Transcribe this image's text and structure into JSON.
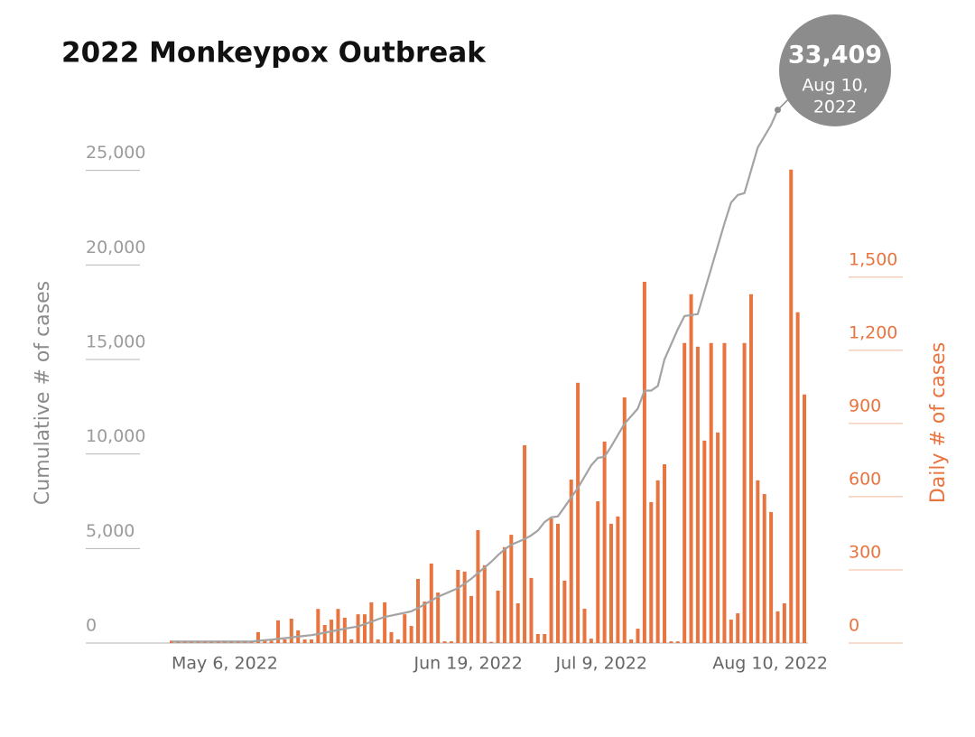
{
  "chart_data": {
    "type": "bar-line",
    "title": "2022 Monkeypox Outbreak",
    "ylabel": "Cumulative # of cases",
    "y2label": "Daily # of cases",
    "categories": [
      "May 6, 2022",
      null,
      null,
      null,
      null,
      null,
      null,
      null,
      null,
      null,
      null,
      null,
      null,
      null,
      null,
      null,
      null,
      null,
      null,
      null,
      null,
      null,
      null,
      null,
      null,
      null,
      null,
      null,
      null,
      null,
      null,
      null,
      null,
      null,
      null,
      null,
      null,
      null,
      null,
      null,
      null,
      null,
      null,
      null,
      "Jun 19, 2022",
      null,
      null,
      null,
      null,
      null,
      null,
      null,
      null,
      null,
      null,
      null,
      null,
      null,
      null,
      null,
      null,
      null,
      null,
      null,
      "Jul 9, 2022",
      null,
      null,
      null,
      null,
      null,
      null,
      null,
      null,
      null,
      null,
      null,
      null,
      null,
      null,
      null,
      null,
      null,
      null,
      null,
      null,
      null,
      null,
      null,
      null,
      null,
      null,
      null,
      null,
      null,
      null,
      "Aug 10, 2022"
    ],
    "series": [
      {
        "name": "Daily # of cases",
        "type": "bar",
        "axis": "y2",
        "color": "#e8743f",
        "values": [
          10,
          10,
          10,
          10,
          10,
          10,
          10,
          10,
          10,
          10,
          10,
          10,
          10,
          45,
          10,
          10,
          93,
          15,
          100,
          52,
          15,
          15,
          140,
          74,
          96,
          140,
          104,
          15,
          118,
          118,
          167,
          15,
          167,
          45,
          15,
          118,
          70,
          263,
          170,
          326,
          207,
          7,
          7,
          300,
          293,
          193,
          463,
          319,
          5,
          215,
          393,
          444,
          163,
          811,
          267,
          37,
          37,
          511,
          489,
          256,
          670,
          1067,
          141,
          18,
          581,
          826,
          489,
          519,
          1007,
          15,
          59,
          1481,
          578,
          667,
          733,
          7,
          7,
          1230,
          1430,
          1215,
          830,
          1230,
          863,
          1230,
          96,
          122,
          1230,
          1430,
          667,
          611,
          537,
          130,
          163,
          1941,
          1356,
          1019
        ]
      },
      {
        "name": "Cumulative # of cases",
        "type": "line",
        "color": "#a3a3a3",
        "values": [
          80,
          80,
          80,
          80,
          80,
          80,
          80,
          80,
          80,
          80,
          80,
          80,
          80,
          120,
          150,
          180,
          220,
          260,
          300,
          340,
          380,
          420,
          480,
          550,
          620,
          690,
          760,
          820,
          880,
          1000,
          1130,
          1260,
          1380,
          1450,
          1530,
          1600,
          1680,
          1850,
          2050,
          2250,
          2450,
          2600,
          2750,
          2900,
          3150,
          3400,
          3700,
          4000,
          4300,
          4650,
          4950,
          5200,
          5350,
          5500,
          5700,
          5950,
          6400,
          6650,
          6700,
          7200,
          7700,
          8200,
          8800,
          9400,
          9800,
          9850,
          10400,
          11000,
          11600,
          12000,
          12400,
          13350,
          13350,
          13600,
          15000,
          15800,
          16600,
          17300,
          17350,
          17400,
          18600,
          19800,
          21000,
          22200,
          23300,
          23700,
          23800,
          25000,
          26200,
          26800,
          27400,
          28200,
          null,
          null,
          null,
          null
        ]
      }
    ],
    "ylim": [
      0,
      30000
    ],
    "yticks": [
      0,
      {
        "value": 5000,
        "label": "5,000"
      },
      {
        "value": 10000,
        "label": "10,000"
      },
      {
        "value": 15000,
        "label": "15,000"
      },
      {
        "value": 20000,
        "label": "20,000"
      },
      {
        "value": 25000,
        "label": "25,000"
      }
    ],
    "y2lim": [
      0,
      2325
    ],
    "y2ticks": [
      0,
      300,
      600,
      900,
      {
        "value": 1200,
        "label": "1,200"
      },
      {
        "value": 1500,
        "label": "1,500"
      }
    ],
    "annotation": {
      "text": "33,409",
      "lines": [
        "Aug 10,",
        "2022"
      ],
      "color": "#8c8c8c"
    }
  }
}
